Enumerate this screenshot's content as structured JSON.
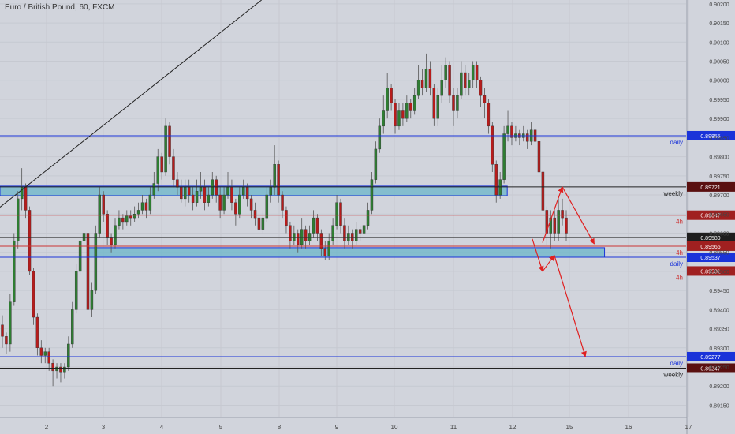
{
  "header": {
    "symbol_title": "Euro / British Pound, 60, FXCM"
  },
  "colors": {
    "background": "#d1d4dc",
    "bull": "#2e7d32",
    "bear": "#b71c1c",
    "wick": "#555555",
    "daily_line": "#1a33d9",
    "h4_line": "#cc3333",
    "weekly_line": "#222222",
    "zone_fill": "#69b6c9",
    "arrow": "#e02020",
    "axis_text": "#444444"
  },
  "chart_data": {
    "type": "candlestick",
    "x_ticks": [
      "2",
      "3",
      "4",
      "5",
      "8",
      "9",
      "10",
      "11",
      "12",
      "15",
      "16",
      "17"
    ],
    "y_ticks": [
      "0.89150",
      "0.89200",
      "0.89250",
      "0.89300",
      "0.89350",
      "0.89400",
      "0.89450",
      "0.89500",
      "0.89550",
      "0.89600",
      "0.89650",
      "0.89700",
      "0.89750",
      "0.89800",
      "0.89850",
      "0.89900",
      "0.89950",
      "0.90000",
      "0.90050",
      "0.90100",
      "0.90150",
      "0.90200"
    ],
    "ylim": [
      0.8912,
      0.9021
    ],
    "price_lines": [
      {
        "value": 0.89855,
        "label": "daily",
        "tag": "0.89855",
        "kind": "daily"
      },
      {
        "value": 0.89721,
        "label": "weekly",
        "tag": "0.89721",
        "kind": "weekly"
      },
      {
        "value": 0.89647,
        "label": "4h",
        "tag": "0.89647",
        "kind": "h4"
      },
      {
        "value": 0.89589,
        "label": "",
        "tag": "0.89589",
        "kind": "current"
      },
      {
        "value": 0.89566,
        "label": "4h",
        "tag": "0.89566",
        "kind": "h4"
      },
      {
        "value": 0.89537,
        "label": "daily",
        "tag": "0.89537",
        "kind": "daily"
      },
      {
        "value": 0.89501,
        "label": "4h",
        "tag": "0.89501",
        "kind": "h4"
      },
      {
        "value": 0.89277,
        "label": "daily",
        "tag": "0.89277",
        "kind": "daily"
      },
      {
        "value": 0.89247,
        "label": "weekly",
        "tag": "0.89247",
        "kind": "weekly"
      }
    ],
    "zones": [
      {
        "from": 0.89698,
        "to": 0.89723,
        "x_start": 0.0,
        "x_end": 0.7393
      },
      {
        "from": 0.89537,
        "to": 0.89562,
        "x_start": 0.1275,
        "x_end": 0.8811
      }
    ],
    "trendline": [
      {
        "x": 0.0,
        "y": 0.89668
      },
      {
        "x": 0.3812,
        "y": 0.9021
      }
    ],
    "arrows": [
      [
        {
          "x": 0.7908,
          "y": 0.89575
        },
        {
          "x": 0.8196,
          "y": 0.89721
        },
        {
          "x": 0.8661,
          "y": 0.89572
        }
      ],
      [
        {
          "x": 0.7758,
          "y": 0.89585
        },
        {
          "x": 0.7908,
          "y": 0.895
        },
        {
          "x": 0.8079,
          "y": 0.89542
        },
        {
          "x": 0.8532,
          "y": 0.89277
        }
      ]
    ],
    "candles": [
      [
        0.8936,
        0.8933,
        0.89385,
        0.893
      ],
      [
        0.8933,
        0.8931,
        0.8934,
        0.89285
      ],
      [
        0.8931,
        0.8942,
        0.8944,
        0.8929
      ],
      [
        0.8942,
        0.8958,
        0.896,
        0.8941
      ],
      [
        0.8958,
        0.8969,
        0.8971,
        0.8956
      ],
      [
        0.8969,
        0.8972,
        0.8977,
        0.8966
      ],
      [
        0.8972,
        0.8966,
        0.8973,
        0.8964
      ],
      [
        0.8966,
        0.895,
        0.8967,
        0.8949
      ],
      [
        0.895,
        0.8938,
        0.8951,
        0.8936
      ],
      [
        0.8938,
        0.893,
        0.8939,
        0.8928
      ],
      [
        0.893,
        0.8928,
        0.8932,
        0.8926
      ],
      [
        0.8928,
        0.8929,
        0.893,
        0.8926
      ],
      [
        0.8929,
        0.8926,
        0.893,
        0.8924
      ],
      [
        0.8926,
        0.8924,
        0.8927,
        0.892
      ],
      [
        0.8924,
        0.8925,
        0.8926,
        0.8922
      ],
      [
        0.8925,
        0.89235,
        0.8926,
        0.8921
      ],
      [
        0.89235,
        0.8925,
        0.8926,
        0.8922
      ],
      [
        0.8925,
        0.8931,
        0.8933,
        0.8924
      ],
      [
        0.8931,
        0.894,
        0.8942,
        0.893
      ],
      [
        0.894,
        0.895,
        0.8952,
        0.8939
      ],
      [
        0.895,
        0.8958,
        0.896,
        0.8949
      ],
      [
        0.8958,
        0.896,
        0.8962,
        0.8948
      ],
      [
        0.896,
        0.894,
        0.8961,
        0.8938
      ],
      [
        0.894,
        0.8945,
        0.8947,
        0.8938
      ],
      [
        0.8945,
        0.896,
        0.8962,
        0.8944
      ],
      [
        0.896,
        0.897,
        0.8972,
        0.8959
      ],
      [
        0.897,
        0.8965,
        0.8971,
        0.8963
      ],
      [
        0.8965,
        0.8959,
        0.8966,
        0.8957
      ],
      [
        0.8959,
        0.8957,
        0.896,
        0.8955
      ],
      [
        0.8957,
        0.8962,
        0.8964,
        0.8956
      ],
      [
        0.8962,
        0.8964,
        0.8966,
        0.8961
      ],
      [
        0.8964,
        0.8963,
        0.8965,
        0.8961
      ],
      [
        0.8963,
        0.89645,
        0.8966,
        0.8962
      ],
      [
        0.89645,
        0.8964,
        0.8966,
        0.8962
      ],
      [
        0.8964,
        0.8965,
        0.8967,
        0.8963
      ],
      [
        0.8965,
        0.8966,
        0.8968,
        0.8964
      ],
      [
        0.8966,
        0.8968,
        0.897,
        0.8965
      ],
      [
        0.8968,
        0.8966,
        0.8969,
        0.8964
      ],
      [
        0.8966,
        0.897,
        0.8972,
        0.8965
      ],
      [
        0.897,
        0.8973,
        0.8976,
        0.8969
      ],
      [
        0.8973,
        0.898,
        0.8982,
        0.8971
      ],
      [
        0.898,
        0.8976,
        0.8981,
        0.8974
      ],
      [
        0.8976,
        0.8988,
        0.899,
        0.8975
      ],
      [
        0.8988,
        0.898,
        0.8989,
        0.8978
      ],
      [
        0.898,
        0.8974,
        0.8982,
        0.8972
      ],
      [
        0.8974,
        0.8972,
        0.8976,
        0.897
      ],
      [
        0.8972,
        0.8969,
        0.8974,
        0.8968
      ],
      [
        0.8969,
        0.8972,
        0.8974,
        0.8967
      ],
      [
        0.8972,
        0.897,
        0.8974,
        0.8968
      ],
      [
        0.897,
        0.8968,
        0.8972,
        0.8966
      ],
      [
        0.8968,
        0.8971,
        0.8974,
        0.8967
      ],
      [
        0.8971,
        0.8972,
        0.8976,
        0.8969
      ],
      [
        0.8972,
        0.8968,
        0.8974,
        0.8966
      ],
      [
        0.8968,
        0.897,
        0.8972,
        0.8967
      ],
      [
        0.897,
        0.8974,
        0.8976,
        0.8969
      ],
      [
        0.8974,
        0.897,
        0.8975,
        0.8968
      ],
      [
        0.897,
        0.8966,
        0.8972,
        0.8964
      ],
      [
        0.8966,
        0.897,
        0.8972,
        0.8965
      ],
      [
        0.897,
        0.8972,
        0.8976,
        0.8969
      ],
      [
        0.8972,
        0.8968,
        0.8974,
        0.8966
      ],
      [
        0.8968,
        0.8965,
        0.8969,
        0.8962
      ],
      [
        0.8965,
        0.897,
        0.8972,
        0.8964
      ],
      [
        0.897,
        0.8972,
        0.8974,
        0.8969
      ],
      [
        0.8972,
        0.8969,
        0.8973,
        0.8967
      ],
      [
        0.8969,
        0.8966,
        0.897,
        0.8964
      ],
      [
        0.8966,
        0.8964,
        0.8968,
        0.8962
      ],
      [
        0.8964,
        0.8961,
        0.8965,
        0.8958
      ],
      [
        0.8961,
        0.8964,
        0.8966,
        0.896
      ],
      [
        0.8964,
        0.897,
        0.8972,
        0.8963
      ],
      [
        0.897,
        0.8972,
        0.8974,
        0.8968
      ],
      [
        0.8972,
        0.8978,
        0.8983,
        0.897
      ],
      [
        0.8978,
        0.897,
        0.8979,
        0.8968
      ],
      [
        0.897,
        0.8966,
        0.8971,
        0.8964
      ],
      [
        0.8966,
        0.8962,
        0.8967,
        0.896
      ],
      [
        0.8962,
        0.8958,
        0.8963,
        0.8956
      ],
      [
        0.8958,
        0.896,
        0.8962,
        0.8957
      ],
      [
        0.896,
        0.8957,
        0.8961,
        0.8955
      ],
      [
        0.8957,
        0.8961,
        0.8964,
        0.8956
      ],
      [
        0.8961,
        0.8958,
        0.8962,
        0.8956
      ],
      [
        0.8958,
        0.896,
        0.8962,
        0.8957
      ],
      [
        0.896,
        0.8964,
        0.8966,
        0.8959
      ],
      [
        0.8964,
        0.896,
        0.8965,
        0.8958
      ],
      [
        0.896,
        0.8956,
        0.8961,
        0.8954
      ],
      [
        0.8956,
        0.8954,
        0.8958,
        0.8953
      ],
      [
        0.8954,
        0.8958,
        0.896,
        0.8953
      ],
      [
        0.8958,
        0.8962,
        0.8964,
        0.8957
      ],
      [
        0.8962,
        0.8968,
        0.897,
        0.8961
      ],
      [
        0.8968,
        0.8962,
        0.8969,
        0.896
      ],
      [
        0.8962,
        0.8958,
        0.8964,
        0.8956
      ],
      [
        0.8958,
        0.896,
        0.8962,
        0.8957
      ],
      [
        0.896,
        0.8958,
        0.8961,
        0.8956
      ],
      [
        0.8958,
        0.8961,
        0.8963,
        0.8957
      ],
      [
        0.8961,
        0.896,
        0.8962,
        0.8958
      ],
      [
        0.896,
        0.8962,
        0.8964,
        0.8959
      ],
      [
        0.8962,
        0.8966,
        0.8968,
        0.8961
      ],
      [
        0.8966,
        0.8974,
        0.8976,
        0.8965
      ],
      [
        0.8974,
        0.8982,
        0.8984,
        0.8973
      ],
      [
        0.8982,
        0.8988,
        0.899,
        0.8981
      ],
      [
        0.8988,
        0.8992,
        0.8996,
        0.8986
      ],
      [
        0.8992,
        0.8998,
        0.9002,
        0.899
      ],
      [
        0.8998,
        0.8994,
        0.8999,
        0.8992
      ],
      [
        0.8994,
        0.8988,
        0.8995,
        0.8986
      ],
      [
        0.8988,
        0.8992,
        0.8994,
        0.8987
      ],
      [
        0.8992,
        0.899,
        0.8994,
        0.8988
      ],
      [
        0.899,
        0.8994,
        0.8996,
        0.8989
      ],
      [
        0.8994,
        0.8992,
        0.8995,
        0.899
      ],
      [
        0.8992,
        0.8996,
        0.8998,
        0.8991
      ],
      [
        0.8996,
        0.9,
        0.9004,
        0.8995
      ],
      [
        0.9,
        0.8998,
        0.9003,
        0.8996
      ],
      [
        0.8998,
        0.9003,
        0.9007,
        0.8997
      ],
      [
        0.9003,
        0.8998,
        0.9005,
        0.8996
      ],
      [
        0.8998,
        0.899,
        0.8999,
        0.8988
      ],
      [
        0.899,
        0.8996,
        0.8998,
        0.8988
      ],
      [
        0.8996,
        0.9,
        0.9004,
        0.8994
      ],
      [
        0.9,
        0.9004,
        0.9006,
        0.8998
      ],
      [
        0.9004,
        0.8996,
        0.9005,
        0.8994
      ],
      [
        0.8996,
        0.8992,
        0.8998,
        0.8988
      ],
      [
        0.8992,
        0.8996,
        0.8998,
        0.899
      ],
      [
        0.8996,
        0.9002,
        0.9005,
        0.8995
      ],
      [
        0.9002,
        0.8998,
        0.9004,
        0.8996
      ],
      [
        0.8998,
        0.9,
        0.9002,
        0.8996
      ],
      [
        0.9,
        0.9004,
        0.9005,
        0.8998
      ],
      [
        0.9004,
        0.9,
        0.9005,
        0.8998
      ],
      [
        0.9,
        0.8996,
        0.9001,
        0.8993
      ],
      [
        0.8996,
        0.8994,
        0.8998,
        0.899
      ],
      [
        0.8994,
        0.8988,
        0.8995,
        0.8986
      ],
      [
        0.8988,
        0.8978,
        0.8989,
        0.8976
      ],
      [
        0.8978,
        0.897,
        0.8979,
        0.8968
      ],
      [
        0.897,
        0.8974,
        0.8976,
        0.8969
      ],
      [
        0.8974,
        0.8986,
        0.8988,
        0.8973
      ],
      [
        0.8986,
        0.8988,
        0.8992,
        0.8984
      ],
      [
        0.8988,
        0.8985,
        0.8989,
        0.8983
      ],
      [
        0.8985,
        0.8986,
        0.8988,
        0.8984
      ],
      [
        0.8986,
        0.8985,
        0.8987,
        0.8983
      ],
      [
        0.8985,
        0.8986,
        0.8988,
        0.8984
      ],
      [
        0.8986,
        0.8984,
        0.8987,
        0.8982
      ],
      [
        0.8984,
        0.8987,
        0.8989,
        0.8983
      ],
      [
        0.8987,
        0.8984,
        0.8989,
        0.8982
      ],
      [
        0.8984,
        0.8976,
        0.8985,
        0.8974
      ],
      [
        0.8976,
        0.8966,
        0.8977,
        0.8964
      ],
      [
        0.8966,
        0.896,
        0.8967,
        0.8957
      ],
      [
        0.896,
        0.8964,
        0.8966,
        0.8956
      ],
      [
        0.8964,
        0.896,
        0.8966,
        0.8958
      ],
      [
        0.896,
        0.8966,
        0.8969,
        0.8958
      ],
      [
        0.8966,
        0.8964,
        0.8969,
        0.8962
      ],
      [
        0.8964,
        0.896,
        0.8966,
        0.8958
      ]
    ]
  }
}
